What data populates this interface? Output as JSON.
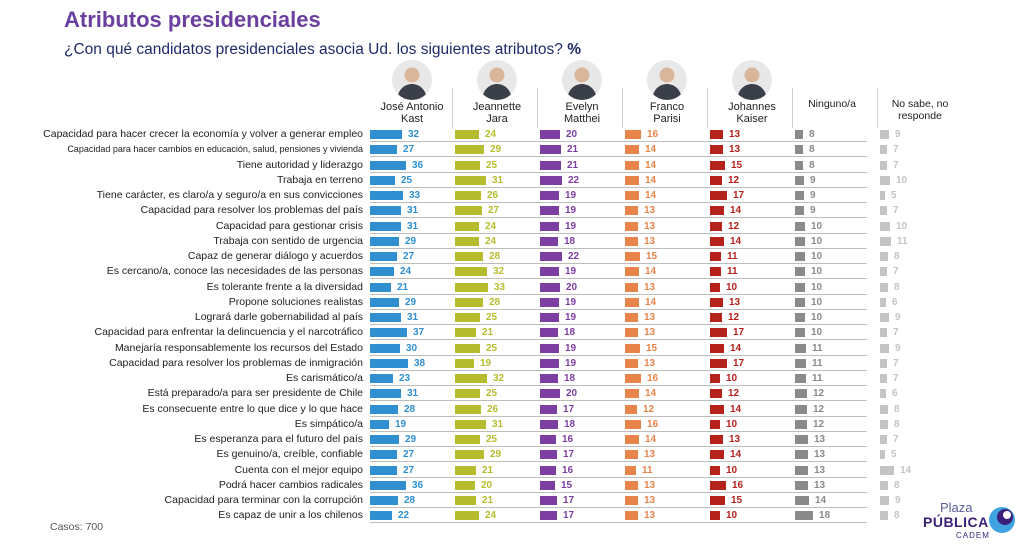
{
  "header": {
    "title": "Atributos presidenciales",
    "subtitle": "¿Con qué candidatos presidenciales asocia Ud. los siguientes atributos?",
    "subtitle_unit": "%"
  },
  "columns": [
    {
      "name": "José Antonio\nKast",
      "avatar": "avatar-jose-antonio-kast",
      "color": "#2f8fd1"
    },
    {
      "name": "Jeannette\nJara",
      "avatar": "avatar-jeannette-jara",
      "color": "#b5bd2e"
    },
    {
      "name": "Evelyn\nMatthei",
      "avatar": "avatar-evelyn-matthei",
      "color": "#7d3ea2"
    },
    {
      "name": "Franco\nParisi",
      "avatar": "avatar-franco-parisi",
      "color": "#e8844a"
    },
    {
      "name": "Johannes\nKaiser",
      "avatar": "avatar-johannes-kaiser",
      "color": "#b5211b"
    },
    {
      "name": "Ninguno/a",
      "avatar": null,
      "color": "#8a8a8a"
    },
    {
      "name": "No sabe, no\nresponde",
      "avatar": null,
      "color": "#c4c4c4"
    }
  ],
  "chart_data": {
    "type": "bar",
    "orientation": "horizontal",
    "title": "Atributos presidenciales",
    "unit": "%",
    "categories": [
      "Capacidad para hacer crecer la economía y volver a generar empleo",
      "Capacidad para hacer cambios en educación, salud, pensiones y vivienda",
      "Tiene autoridad y liderazgo",
      "Trabaja en terreno",
      "Tiene carácter, es claro/a y seguro/a en sus convicciones",
      "Capacidad para resolver los problemas del país",
      "Capacidad para gestionar crisis",
      "Trabaja con sentido de urgencia",
      "Capaz de generar diálogo y acuerdos",
      "Es cercano/a, conoce las necesidades de las personas",
      "Es tolerante frente a la diversidad",
      "Propone soluciones realistas",
      "Logrará darle gobernabilidad al país",
      "Capacidad para enfrentar la delincuencia y el narcotráfico",
      "Manejaría responsablemente los recursos del Estado",
      "Capacidad para resolver los problemas de inmigración",
      "Es carismático/a",
      "Está preparado/a para ser presidente de Chile",
      "Es consecuente entre lo que dice y lo que hace",
      "Es simpático/a",
      "Es esperanza para el futuro del país",
      "Es genuino/a, creíble, confiable",
      "Cuenta con el mejor equipo",
      "Podrá hacer cambios radicales",
      "Capacidad para terminar con la corrupción",
      "Es capaz de unir a los chilenos"
    ],
    "series": [
      {
        "name": "José Antonio Kast",
        "values": [
          32,
          27,
          36,
          25,
          33,
          31,
          31,
          29,
          27,
          24,
          21,
          29,
          31,
          37,
          30,
          38,
          23,
          31,
          28,
          19,
          29,
          27,
          27,
          36,
          28,
          22
        ]
      },
      {
        "name": "Jeannette Jara",
        "values": [
          24,
          29,
          25,
          31,
          26,
          27,
          24,
          24,
          28,
          32,
          33,
          28,
          25,
          21,
          25,
          19,
          32,
          25,
          26,
          31,
          25,
          29,
          21,
          20,
          21,
          24
        ]
      },
      {
        "name": "Evelyn Matthei",
        "values": [
          20,
          21,
          21,
          22,
          19,
          19,
          19,
          18,
          22,
          19,
          20,
          19,
          19,
          18,
          19,
          19,
          18,
          20,
          17,
          18,
          16,
          17,
          16,
          15,
          17,
          17
        ]
      },
      {
        "name": "Franco Parisi",
        "values": [
          16,
          14,
          14,
          14,
          14,
          13,
          13,
          13,
          15,
          14,
          13,
          14,
          13,
          13,
          15,
          13,
          16,
          14,
          12,
          16,
          14,
          13,
          11,
          13,
          13,
          13
        ]
      },
      {
        "name": "Johannes Kaiser",
        "values": [
          13,
          13,
          15,
          12,
          17,
          14,
          12,
          14,
          11,
          11,
          10,
          13,
          12,
          17,
          14,
          17,
          10,
          12,
          14,
          10,
          13,
          14,
          10,
          16,
          15,
          10
        ]
      },
      {
        "name": "Ninguno/a",
        "values": [
          8,
          8,
          8,
          9,
          9,
          9,
          10,
          10,
          10,
          10,
          10,
          10,
          10,
          10,
          11,
          11,
          11,
          12,
          12,
          12,
          13,
          13,
          13,
          13,
          14,
          18
        ]
      },
      {
        "name": "No sabe, no responde",
        "values": [
          9,
          7,
          7,
          10,
          5,
          7,
          10,
          11,
          8,
          7,
          8,
          6,
          9,
          7,
          9,
          7,
          7,
          6,
          8,
          8,
          7,
          5,
          14,
          8,
          9,
          8
        ]
      }
    ]
  },
  "footer": {
    "cases": "Casos: 700"
  },
  "logo": {
    "line1": "Plaza",
    "line2": "PÚBLICA",
    "line3": "CADEM"
  }
}
